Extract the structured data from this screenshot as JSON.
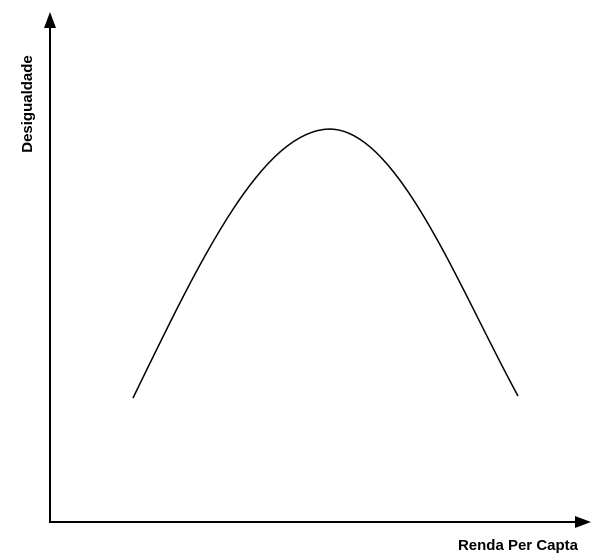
{
  "y_axis": {
    "label": "Desigualdade"
  },
  "x_axis": {
    "label": "Renda Per Capta"
  }
}
